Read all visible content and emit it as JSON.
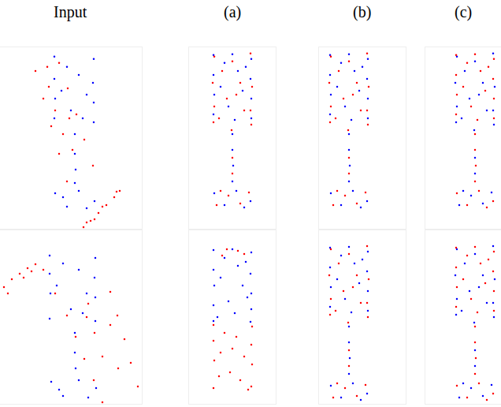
{
  "chart_data": [
    {
      "type": "scatter",
      "title": "Input",
      "xlim": [
        0,
        180
      ],
      "ylim": [
        0,
        230
      ],
      "xticks": [],
      "yticks": [],
      "tick_labels": false,
      "grid": false,
      "series": [
        {
          "color": "#0000ff",
          "x": [
            69,
            69,
            70,
            69,
            119,
            118,
            119,
            119,
            85,
            100,
            78,
            110,
            90,
            105,
            95,
            95,
            96,
            95,
            70,
            85,
            100,
            120,
            110,
            80
          ],
          "y": [
            218,
            190,
            165,
            140,
            215,
            185,
            160,
            135,
            205,
            195,
            175,
            170,
            150,
            140,
            120,
            95,
            75,
            58,
            45,
            28,
            48,
            35,
            26,
            40
          ]
        },
        {
          "color": "#ff0000",
          "x": [
            45,
            55,
            65,
            75,
            85,
            75,
            86,
            97,
            107,
            118,
            60,
            70,
            80,
            62,
            92,
            88,
            106,
            115,
            125,
            135,
            145,
            152,
            110,
            130,
            148,
            120
          ],
          "y": [
            200,
            165,
            130,
            95,
            60,
            210,
            178,
            145,
            113,
            80,
            205,
            150,
            120,
            180,
            100,
            140,
            2,
            10,
            20,
            30,
            40,
            48,
            8,
            28,
            47,
            12
          ]
        }
      ]
    },
    {
      "type": "scatter",
      "title": "(a)",
      "xlim": [
        0,
        110
      ],
      "ylim": [
        0,
        230
      ],
      "xticks": [],
      "yticks": [],
      "tick_labels": false,
      "grid": false,
      "series": [
        {
          "color": "#0000ff",
          "x": [
            31,
            31,
            32,
            31,
            79,
            78,
            79,
            79,
            45,
            62,
            40,
            68,
            50,
            58,
            72,
            55,
            55,
            55,
            56,
            55,
            32,
            45,
            60,
            78,
            70
          ],
          "y": [
            220,
            195,
            170,
            145,
            215,
            190,
            165,
            140,
            210,
            200,
            180,
            175,
            155,
            138,
            205,
            221,
            120,
            100,
            80,
            60,
            45,
            30,
            48,
            35,
            27
          ]
        },
        {
          "color": "#ff0000",
          "x": [
            32,
            30,
            32,
            31,
            78,
            80,
            78,
            79,
            42,
            55,
            65,
            48,
            70,
            38,
            60,
            54,
            55,
            55,
            35,
            50,
            65,
            76,
            40
          ],
          "y": [
            218,
            185,
            155,
            135,
            222,
            180,
            150,
            132,
            200,
            212,
            185,
            165,
            150,
            140,
            170,
            125,
            90,
            70,
            30,
            42,
            32,
            46,
            48
          ]
        }
      ]
    },
    {
      "type": "scatter",
      "title": "(b)",
      "xlim": [
        0,
        110
      ],
      "ylim": [
        0,
        230
      ],
      "xticks": [],
      "yticks": [],
      "tick_labels": false,
      "grid": false,
      "series": [
        {
          "color": "#0000ff",
          "x": [
            14,
            14,
            15,
            14,
            62,
            61,
            62,
            62,
            28,
            45,
            23,
            51,
            33,
            41,
            55,
            38,
            38,
            38,
            39,
            38,
            15,
            28,
            43,
            61,
            53
          ],
          "y": [
            220,
            195,
            170,
            145,
            215,
            190,
            165,
            140,
            210,
            200,
            180,
            175,
            155,
            138,
            205,
            221,
            120,
            100,
            80,
            60,
            45,
            30,
            48,
            35,
            27
          ]
        },
        {
          "color": "#ff0000",
          "x": [
            15,
            13,
            15,
            14,
            61,
            63,
            61,
            62,
            25,
            38,
            48,
            31,
            53,
            21,
            43,
            37,
            38,
            38,
            18,
            33,
            48,
            59,
            23
          ],
          "y": [
            218,
            185,
            155,
            135,
            222,
            180,
            150,
            132,
            200,
            212,
            185,
            165,
            150,
            140,
            170,
            125,
            90,
            70,
            30,
            42,
            32,
            46,
            48
          ]
        }
      ]
    },
    {
      "type": "scatter",
      "title": "(c)",
      "xlim": [
        0,
        96
      ],
      "ylim": [
        0,
        230
      ],
      "xticks": [],
      "yticks": [],
      "tick_labels": false,
      "grid": false,
      "series": [
        {
          "color": "#0000ff",
          "x": [
            40,
            38,
            40,
            39,
            86,
            88,
            86,
            87,
            50,
            63,
            73,
            56,
            78,
            46,
            68,
            62,
            63,
            63,
            43,
            58,
            73,
            84,
            48
          ],
          "y": [
            218,
            185,
            155,
            135,
            222,
            180,
            150,
            132,
            200,
            212,
            185,
            165,
            150,
            140,
            170,
            125,
            90,
            70,
            30,
            42,
            32,
            46,
            48
          ]
        },
        {
          "color": "#ff0000",
          "x": [
            39,
            39,
            40,
            39,
            87,
            86,
            87,
            87,
            53,
            70,
            48,
            76,
            58,
            66,
            80,
            63,
            63,
            63,
            64,
            63,
            40,
            53,
            68,
            86,
            78
          ],
          "y": [
            220,
            195,
            170,
            145,
            215,
            190,
            165,
            140,
            210,
            200,
            180,
            175,
            155,
            138,
            205,
            221,
            120,
            100,
            80,
            60,
            45,
            30,
            48,
            35,
            27
          ]
        }
      ]
    },
    {
      "type": "scatter",
      "xlim": [
        0,
        180
      ],
      "ylim": [
        0,
        220
      ],
      "xticks": [],
      "yticks": [],
      "tick_labels": false,
      "grid": false,
      "series": [
        {
          "color": "#0000ff",
          "x": [
            63,
            63,
            64,
            63,
            121,
            120,
            121,
            121,
            80,
            100,
            72,
            110,
            90,
            105,
            95,
            95,
            96,
            65,
            80,
            100,
            122,
            112,
            75
          ],
          "y": [
            188,
            165,
            140,
            108,
            185,
            160,
            135,
            105,
            178,
            170,
            150,
            140,
            120,
            115,
            90,
            65,
            45,
            28,
            10,
            30,
            20,
            8,
            18
          ]
        },
        {
          "color": "#ff0000",
          "x": [
            85,
            96,
            107,
            119,
            130,
            140,
            149,
            158,
            166,
            175,
            112,
            120,
            130,
            140,
            150,
            110,
            5,
            15,
            25,
            35,
            45,
            10,
            30,
            40,
            55,
            70
          ],
          "y": [
            112,
            85,
            57,
            30,
            2,
            142,
            112,
            82,
            52,
            22,
            127,
            90,
            60,
            100,
            45,
            110,
            148,
            158,
            165,
            172,
            177,
            140,
            160,
            168,
            170,
            140
          ]
        }
      ]
    },
    {
      "type": "scatter",
      "xlim": [
        0,
        110
      ],
      "ylim": [
        0,
        220
      ],
      "xticks": [],
      "yticks": [],
      "tick_labels": false,
      "grid": false,
      "series": [
        {
          "color": "#0000ff",
          "x": [
            31,
            31,
            32,
            31,
            31,
            79,
            78,
            79,
            79,
            78,
            45,
            62,
            40,
            68,
            50,
            58,
            72,
            55,
            36,
            74
          ],
          "y": [
            195,
            170,
            150,
            125,
            105,
            192,
            165,
            140,
            120,
            104,
            185,
            175,
            160,
            150,
            130,
            115,
            180,
            196,
            110,
            135
          ]
        },
        {
          "color": "#ff0000",
          "x": [
            31,
            31,
            32,
            31,
            80,
            79,
            80,
            79,
            45,
            60,
            40,
            70,
            52,
            65,
            38,
            75,
            55,
            48,
            62,
            70,
            42
          ],
          "y": [
            100,
            80,
            55,
            20,
            98,
            75,
            50,
            22,
            90,
            85,
            65,
            60,
            40,
            30,
            35,
            18,
            70,
            196,
            194,
            190,
            188
          ]
        }
      ]
    },
    {
      "type": "scatter",
      "xlim": [
        0,
        110
      ],
      "ylim": [
        0,
        220
      ],
      "xticks": [],
      "yticks": [],
      "tick_labels": false,
      "grid": false,
      "series": [
        {
          "color": "#0000ff",
          "x": [
            14,
            14,
            15,
            14,
            62,
            61,
            62,
            62,
            28,
            45,
            23,
            51,
            33,
            41,
            55,
            38,
            38,
            38,
            39,
            38,
            15,
            28,
            43,
            61,
            53
          ],
          "y": [
            198,
            173,
            148,
            123,
            193,
            168,
            143,
            118,
            188,
            178,
            158,
            153,
            133,
            116,
            183,
            199,
            98,
            78,
            58,
            38,
            23,
            8,
            26,
            13,
            5
          ]
        },
        {
          "color": "#ff0000",
          "x": [
            15,
            13,
            15,
            14,
            61,
            63,
            61,
            62,
            25,
            38,
            48,
            31,
            53,
            21,
            43,
            37,
            38,
            38,
            18,
            33,
            48,
            59,
            23
          ],
          "y": [
            196,
            163,
            133,
            113,
            200,
            158,
            128,
            110,
            178,
            190,
            163,
            143,
            128,
            118,
            148,
            103,
            68,
            48,
            8,
            20,
            10,
            24,
            26
          ]
        }
      ]
    },
    {
      "type": "scatter",
      "xlim": [
        0,
        96
      ],
      "ylim": [
        0,
        220
      ],
      "xticks": [],
      "yticks": [],
      "tick_labels": false,
      "grid": false,
      "series": [
        {
          "color": "#0000ff",
          "x": [
            40,
            38,
            40,
            39,
            86,
            88,
            86,
            87,
            50,
            63,
            73,
            56,
            78,
            46,
            68,
            62,
            63,
            63,
            43,
            58,
            73,
            84,
            48
          ],
          "y": [
            196,
            163,
            133,
            113,
            200,
            158,
            128,
            110,
            178,
            190,
            163,
            143,
            128,
            118,
            148,
            103,
            68,
            48,
            8,
            20,
            10,
            24,
            26
          ]
        },
        {
          "color": "#ff0000",
          "x": [
            39,
            39,
            40,
            39,
            87,
            86,
            87,
            87,
            53,
            70,
            48,
            76,
            58,
            66,
            80,
            63,
            63,
            63,
            64,
            63,
            40,
            53,
            68,
            86,
            78
          ],
          "y": [
            198,
            173,
            148,
            123,
            193,
            168,
            143,
            118,
            188,
            178,
            158,
            153,
            133,
            116,
            183,
            199,
            98,
            78,
            58,
            38,
            23,
            8,
            26,
            13,
            5
          ]
        }
      ]
    }
  ]
}
